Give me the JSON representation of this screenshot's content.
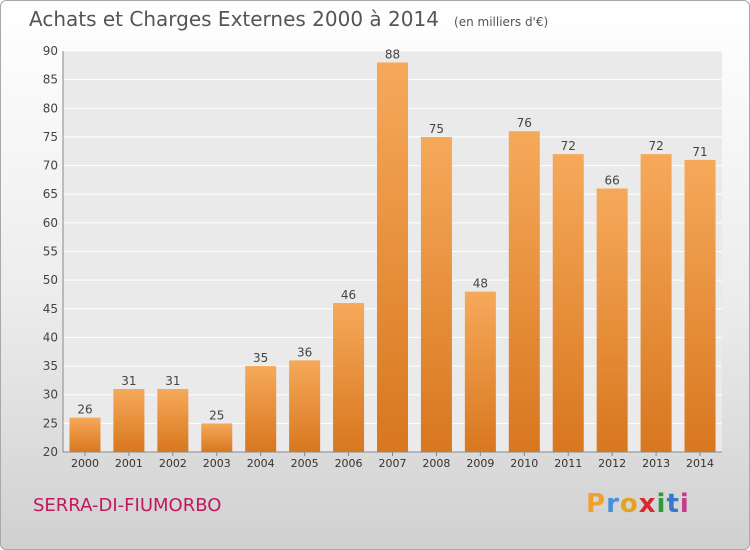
{
  "title": "Achats et Charges Externes 2000 à 2014",
  "unit": "(en milliers d'€)",
  "commune": "SERRA-DI-FIUMORBO",
  "logo": {
    "text": "Proxiti",
    "letters": [
      {
        "char": "P",
        "color": "#f0a030"
      },
      {
        "char": "r",
        "color": "#4a90d9"
      },
      {
        "char": "o",
        "color": "#e5a21c"
      },
      {
        "char": "x",
        "color": "#d9282f"
      },
      {
        "char": "i",
        "color": "#2e9b3a"
      },
      {
        "char": "t",
        "color": "#3a78c9"
      },
      {
        "char": "i",
        "color": "#c43c8c"
      }
    ]
  },
  "chart_data": {
    "type": "bar",
    "title": "Achats et Charges Externes 2000 à 2014",
    "xlabel": "",
    "ylabel": "",
    "categories": [
      "2000",
      "2001",
      "2002",
      "2003",
      "2004",
      "2005",
      "2006",
      "2007",
      "2008",
      "2009",
      "2010",
      "2011",
      "2012",
      "2013",
      "2014"
    ],
    "values": [
      26,
      31,
      31,
      25,
      35,
      36,
      46,
      88,
      75,
      48,
      76,
      72,
      66,
      72,
      71
    ],
    "ylim": [
      20,
      90
    ],
    "yticks": [
      20,
      25,
      30,
      35,
      40,
      45,
      50,
      55,
      60,
      65,
      70,
      75,
      80,
      85,
      90
    ],
    "grid": true,
    "bar_color": "#f0a050"
  }
}
